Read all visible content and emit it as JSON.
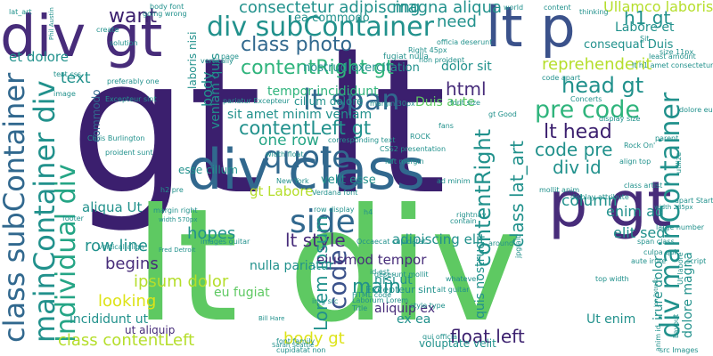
{
  "palette": {
    "indigo": "#3b1f6e",
    "violet": "#472c7a",
    "blue": "#3b528b",
    "slate": "#31688e",
    "teal": "#21918c",
    "sea": "#25a585",
    "green": "#2fb47c",
    "lime": "#5ec962",
    "yellow": "#b5de2b",
    "gold": "#dde318"
  },
  "words": [
    {
      "text": "gt lt",
      "color": "indigo"
    },
    {
      "text": "lt div",
      "color": "lime"
    },
    {
      "text": "div class",
      "color": "slate"
    },
    {
      "text": "div gt",
      "color": "violet"
    },
    {
      "text": "lt p",
      "color": "blue"
    },
    {
      "text": "p gt",
      "color": "violet"
    },
    {
      "text": "div subContainer",
      "color": "teal"
    },
    {
      "text": "class subContainer",
      "color": "slate"
    },
    {
      "text": "mainContainer div",
      "color": "teal"
    },
    {
      "text": "Individual div",
      "color": "sea"
    },
    {
      "text": "div mainContainer",
      "color": "teal"
    },
    {
      "text": "quote",
      "color": "slate"
    },
    {
      "text": "class photo",
      "color": "slate"
    },
    {
      "text": "contentRight gt",
      "color": "green"
    },
    {
      "text": "contentLeft gt",
      "color": "teal"
    },
    {
      "text": "lt span",
      "color": "slate"
    },
    {
      "text": "lt head",
      "color": "indigo"
    },
    {
      "text": "head gt",
      "color": "teal"
    },
    {
      "text": "pre code",
      "color": "green"
    },
    {
      "text": "code pre",
      "color": "teal"
    },
    {
      "text": "h1 gt",
      "color": "teal"
    },
    {
      "text": "div id",
      "color": "teal"
    },
    {
      "text": "lt style",
      "color": "violet"
    },
    {
      "text": "side",
      "color": "slate"
    },
    {
      "text": "code",
      "color": "blue"
    },
    {
      "text": "main",
      "color": "teal"
    },
    {
      "text": "row line",
      "color": "teal"
    },
    {
      "text": "begins",
      "color": "violet"
    },
    {
      "text": "hopes",
      "color": "teal"
    },
    {
      "text": "looking",
      "color": "gold"
    },
    {
      "text": "class contentLeft",
      "color": "yellow"
    },
    {
      "text": "body gt",
      "color": "gold"
    },
    {
      "text": "float left",
      "color": "indigo"
    },
    {
      "text": "want",
      "color": "indigo"
    },
    {
      "text": "need",
      "color": "teal"
    },
    {
      "text": "html",
      "color": "violet"
    },
    {
      "text": "contentRight",
      "color": "teal"
    },
    {
      "text": "class lat_art",
      "color": "teal"
    },
    {
      "text": "reprehenderit",
      "color": "yellow"
    },
    {
      "text": "column",
      "color": "teal"
    },
    {
      "text": "enim ad",
      "color": "teal"
    },
    {
      "text": "elit sed",
      "color": "teal"
    },
    {
      "text": "adipiscing elit",
      "color": "teal"
    },
    {
      "text": "Lorem ipsum",
      "color": "teal"
    },
    {
      "text": "ipsum dolor",
      "color": "yellow"
    },
    {
      "text": "eiusmod tempor",
      "color": "violet"
    },
    {
      "text": "aliqua Ut",
      "color": "teal"
    },
    {
      "text": "text",
      "color": "teal"
    },
    {
      "text": "et dolore",
      "color": "teal"
    },
    {
      "text": "incididunt ut",
      "color": "teal"
    },
    {
      "text": "gt Labore",
      "color": "yellow"
    },
    {
      "text": "one row",
      "color": "sea"
    },
    {
      "text": "sit amet minim veniam",
      "color": "teal"
    },
    {
      "text": "tempor incididunt",
      "color": "green"
    },
    {
      "text": "consectetur adipiscing",
      "color": "teal"
    },
    {
      "text": "magna aliqua",
      "color": "teal"
    },
    {
      "text": "Ullamco laboris",
      "color": "yellow"
    },
    {
      "text": "nostrud exercitation",
      "color": "teal"
    },
    {
      "text": "Labore et",
      "color": "teal"
    },
    {
      "text": "consequat Duis",
      "color": "teal"
    },
    {
      "text": "Duis aute",
      "color": "lime"
    },
    {
      "text": "dolor sit",
      "color": "teal"
    },
    {
      "text": "quis nostrud",
      "color": "teal"
    },
    {
      "text": "irure dolor",
      "color": "teal"
    },
    {
      "text": "dolore magna",
      "color": "teal"
    },
    {
      "text": "Ut enim",
      "color": "teal"
    },
    {
      "text": "ex ea",
      "color": "teal"
    },
    {
      "text": "aliquip ex",
      "color": "violet"
    },
    {
      "text": "nisi ut",
      "color": "teal"
    },
    {
      "text": "Excepteur sint",
      "color": "teal"
    },
    {
      "text": "nulla pariatur",
      "color": "teal"
    },
    {
      "text": "ut aliquip",
      "color": "violet"
    },
    {
      "text": "eu fugiat",
      "color": "lime"
    },
    {
      "text": "voluptate velit",
      "color": "teal"
    },
    {
      "text": "velit esse",
      "color": "teal"
    },
    {
      "text": "esse cillum",
      "color": "teal"
    },
    {
      "text": "veniam quis",
      "color": "teal"
    },
    {
      "text": "body",
      "color": "teal"
    },
    {
      "text": "commodo",
      "color": "slate"
    },
    {
      "text": "laboris nisi",
      "color": "teal"
    },
    {
      "text": "ea commodo",
      "color": "teal"
    },
    {
      "text": "cillum dolore",
      "color": "teal"
    },
    {
      "text": "width float",
      "color": "teal"
    },
    {
      "text": "display attribute",
      "color": "teal"
    },
    {
      "text": "Rock On'",
      "color": "teal"
    },
    {
      "text": "Concerts",
      "color": "teal"
    },
    {
      "text": "fugiat nulla",
      "color": "teal"
    },
    {
      "text": "align top",
      "color": "teal"
    },
    {
      "text": "HTML code",
      "color": "teal"
    },
    {
      "text": "alt guitar",
      "color": "teal"
    },
    {
      "text": "img src",
      "color": "teal"
    },
    {
      "text": "src Images",
      "color": "teal"
    },
    {
      "text": "Jon Petrolia",
      "color": "teal"
    },
    {
      "text": "Chris Burlington",
      "color": "teal"
    },
    {
      "text": "Sarah Seattle",
      "color": "teal"
    },
    {
      "text": "Bill Hare",
      "color": "teal"
    },
    {
      "text": "Phil Austin",
      "color": "teal"
    },
    {
      "text": "Fred Detroit",
      "color": "teal"
    },
    {
      "text": "width 570px",
      "color": "teal"
    },
    {
      "text": "width 285px",
      "color": "teal"
    },
    {
      "text": "margin 30px",
      "color": "teal"
    },
    {
      "text": "font family",
      "color": "teal"
    },
    {
      "text": "Verdana font",
      "color": "teal"
    },
    {
      "text": "New York",
      "color": "teal"
    },
    {
      "text": "footer",
      "color": "teal"
    },
    {
      "text": "vertical align",
      "color": "teal"
    },
    {
      "text": "left margin",
      "color": "teal"
    },
    {
      "text": "large number",
      "color": "teal"
    },
    {
      "text": "span class",
      "color": "teal"
    },
    {
      "text": "script",
      "color": "teal"
    },
    {
      "text": "ROCK",
      "color": "teal"
    },
    {
      "text": "CSS2 presentation",
      "color": "teal"
    },
    {
      "text": "corresponding text",
      "color": "teal"
    },
    {
      "text": "preferably one",
      "color": "teal"
    },
    {
      "text": "solution",
      "color": "teal"
    },
    {
      "text": "create",
      "color": "teal"
    },
    {
      "text": "going wrong",
      "color": "teal"
    },
    {
      "text": "body font",
      "color": "teal"
    },
    {
      "text": "non proident",
      "color": "teal"
    },
    {
      "text": "cupidatat non",
      "color": "teal"
    },
    {
      "text": "deserunt mollit",
      "color": "teal"
    },
    {
      "text": "qui officia",
      "color": "teal"
    },
    {
      "text": "Occaecat cupidatat",
      "color": "teal"
    },
    {
      "text": "proident sunt",
      "color": "teal"
    },
    {
      "text": "row display",
      "color": "teal"
    },
    {
      "text": "Title",
      "color": "teal"
    },
    {
      "text": "whatever",
      "color": "teal"
    },
    {
      "text": "gt Good",
      "color": "teal"
    },
    {
      "text": "world",
      "color": "teal"
    },
    {
      "text": "fans",
      "color": "teal"
    },
    {
      "text": "Layout",
      "color": "teal"
    },
    {
      "text": "utilize",
      "color": "teal"
    },
    {
      "text": "vertically",
      "color": "teal"
    },
    {
      "text": "h4",
      "color": "teal"
    },
    {
      "text": "h2 pre",
      "color": "teal"
    },
    {
      "text": "jpg alt",
      "color": "teal"
    },
    {
      "text": "Sit",
      "color": "teal"
    },
    {
      "text": "Right 45px",
      "color": "teal"
    },
    {
      "text": "officia deserunt",
      "color": "teal"
    },
    {
      "text": "lt h1 amet consectetur",
      "color": "teal"
    },
    {
      "text": "size 11px",
      "color": "teal"
    },
    {
      "text": "content",
      "color": "teal"
    },
    {
      "text": "parent",
      "color": "teal"
    },
    {
      "text": "page",
      "color": "teal"
    },
    {
      "text": "Excepteur sint",
      "color": "teal"
    },
    {
      "text": "pariatur Excepteur",
      "color": "teal"
    },
    {
      "text": "style type",
      "color": "teal"
    },
    {
      "text": "class artist",
      "color": "teal"
    },
    {
      "text": "display size",
      "color": "teal"
    },
    {
      "text": "culpa qui",
      "color": "teal"
    },
    {
      "text": "apart Start",
      "color": "teal"
    },
    {
      "text": "margin right",
      "color": "teal"
    },
    {
      "text": "images guitar",
      "color": "teal"
    },
    {
      "text": "Laborum Lorem",
      "color": "teal"
    },
    {
      "text": "top width",
      "color": "teal"
    },
    {
      "text": "code apart",
      "color": "teal"
    },
    {
      "text": "font size",
      "color": "teal"
    },
    {
      "text": "contain",
      "color": "teal"
    },
    {
      "text": "thinking",
      "color": "teal"
    },
    {
      "text": "least amount",
      "color": "teal"
    },
    {
      "text": "text css",
      "color": "teal"
    },
    {
      "text": "image",
      "color": "teal"
    },
    {
      "text": "dolore eu",
      "color": "teal"
    },
    {
      "text": "anim id",
      "color": "teal"
    },
    {
      "text": "id est",
      "color": "teal"
    },
    {
      "text": "aute irure",
      "color": "teal"
    },
    {
      "text": "mollit anim",
      "color": "teal"
    },
    {
      "text": "around",
      "color": "teal"
    },
    {
      "text": "rightnav",
      "color": "teal"
    },
    {
      "text": "ad minim",
      "color": "teal"
    },
    {
      "text": "Ut labore",
      "color": "teal"
    },
    {
      "text": "lat_art",
      "color": "teal"
    }
  ]
}
